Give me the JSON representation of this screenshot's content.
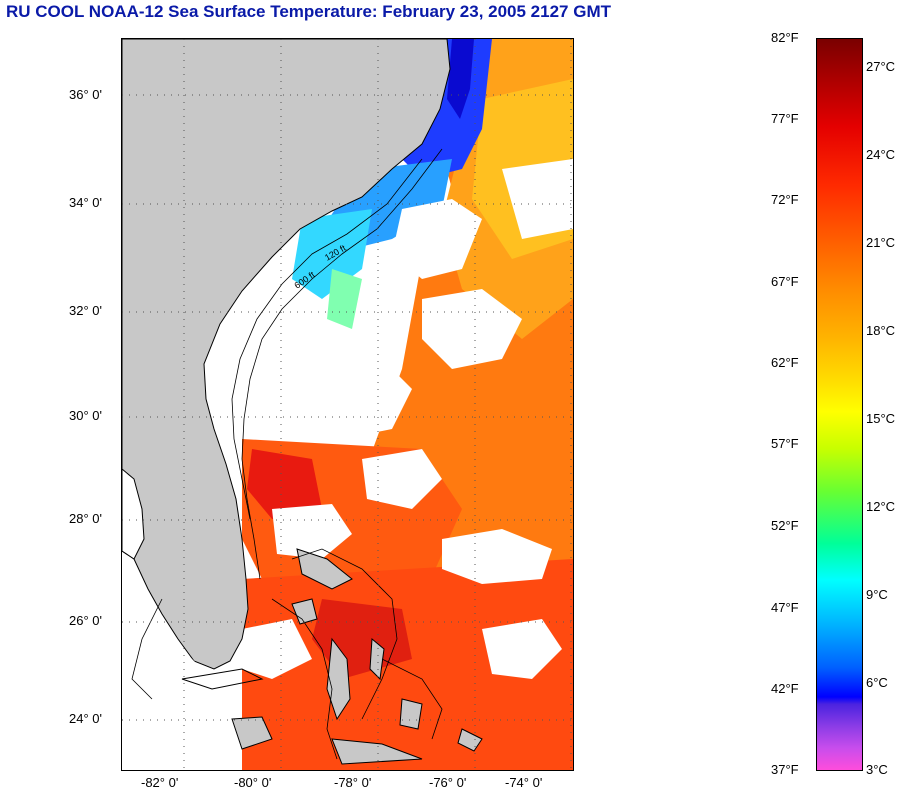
{
  "title": "RU COOL  NOAA-12  Sea Surface Temperature:  February 23, 2005 2127 GMT",
  "map": {
    "latitude_labels": [
      "36° 0'",
      "34° 0'",
      "32° 0'",
      "30° 0'",
      "28° 0'",
      "26° 0'",
      "24° 0'"
    ],
    "longitude_labels": [
      "-82° 0'",
      "-80° 0'",
      "-78° 0'",
      "-76° 0'",
      "-74° 0'"
    ],
    "isobath_labels": [
      "120 ft",
      "600 ft"
    ],
    "colors": {
      "land": "#c8c8c8",
      "cloud": "#ffffff",
      "coastline": "#000000",
      "grid": "#555555"
    }
  },
  "colorbar": {
    "fahrenheit_labels": [
      "82°F",
      "77°F",
      "72°F",
      "67°F",
      "62°F",
      "57°F",
      "52°F",
      "47°F",
      "42°F",
      "37°F"
    ],
    "celsius_labels": [
      "27°C",
      "24°C",
      "21°C",
      "18°C",
      "15°C",
      "12°C",
      "9°C",
      "6°C",
      "3°C"
    ]
  }
}
